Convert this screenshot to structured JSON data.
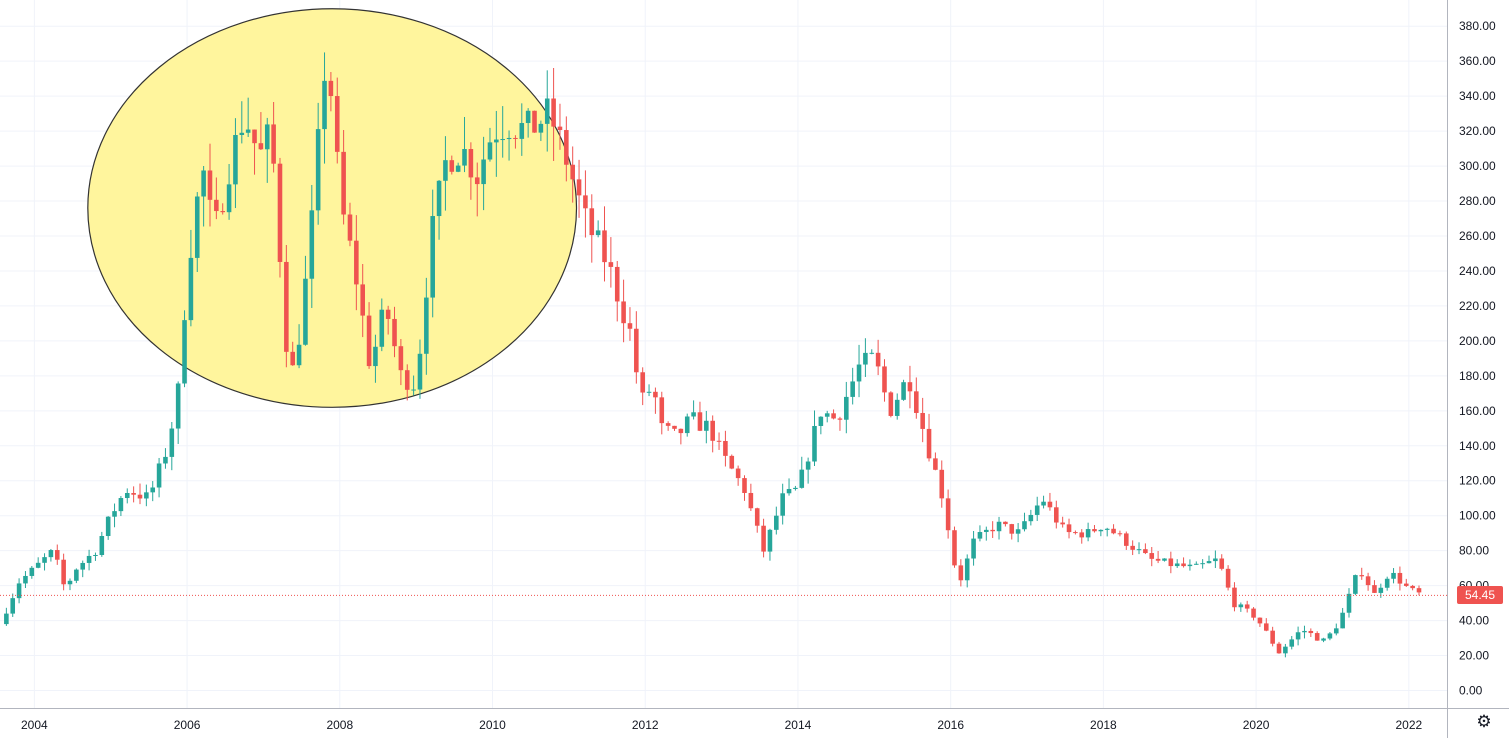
{
  "chart_data": {
    "type": "candlestick",
    "x_range": [
      2003.55,
      2022.5
    ],
    "ylim": [
      -10,
      395
    ],
    "grid": true,
    "x_ticks": [
      "2004",
      "2006",
      "2008",
      "2010",
      "2012",
      "2014",
      "2016",
      "2018",
      "2020",
      "2022"
    ],
    "y_ticks": [
      "0.00",
      "20.00",
      "40.00",
      "60.00",
      "80.00",
      "100.00",
      "120.00",
      "140.00",
      "160.00",
      "180.00",
      "200.00",
      "220.00",
      "240.00",
      "260.00",
      "280.00",
      "300.00",
      "320.00",
      "340.00",
      "360.00",
      "380.00"
    ],
    "last_price": 54.45,
    "last_price_label": "54.45",
    "highlight_ellipse": {
      "shape": "ellipse",
      "x_center": 2007.9,
      "y_center": 276,
      "x_radius": 3.2,
      "y_radius": 114,
      "fill": "#fff59d",
      "stroke": "#333333"
    },
    "colors": {
      "up": "#26a69a",
      "down": "#ef5350",
      "grid": "#f0f3fa",
      "text": "#131722",
      "last_price_line": "#ef5350"
    },
    "anchors": [
      [
        2003.55,
        38
      ],
      [
        2003.8,
        62
      ],
      [
        2004.0,
        70
      ],
      [
        2004.25,
        80
      ],
      [
        2004.4,
        58
      ],
      [
        2004.55,
        70
      ],
      [
        2004.8,
        80
      ],
      [
        2005.0,
        100
      ],
      [
        2005.2,
        115
      ],
      [
        2005.5,
        110
      ],
      [
        2005.75,
        140
      ],
      [
        2005.9,
        175
      ],
      [
        2006.0,
        240
      ],
      [
        2006.2,
        300
      ],
      [
        2006.35,
        260
      ],
      [
        2006.55,
        300
      ],
      [
        2006.75,
        330
      ],
      [
        2006.95,
        305
      ],
      [
        2007.1,
        320
      ],
      [
        2007.3,
        200
      ],
      [
        2007.4,
        180
      ],
      [
        2007.6,
        250
      ],
      [
        2007.8,
        355
      ],
      [
        2007.9,
        340
      ],
      [
        2008.0,
        280
      ],
      [
        2008.2,
        240
      ],
      [
        2008.4,
        185
      ],
      [
        2008.6,
        220
      ],
      [
        2008.8,
        180
      ],
      [
        2009.0,
        175
      ],
      [
        2009.2,
        260
      ],
      [
        2009.4,
        305
      ],
      [
        2009.6,
        310
      ],
      [
        2009.8,
        295
      ],
      [
        2010.0,
        320
      ],
      [
        2010.2,
        325
      ],
      [
        2010.45,
        320
      ],
      [
        2010.75,
        330
      ],
      [
        2011.0,
        300
      ],
      [
        2011.2,
        270
      ],
      [
        2011.5,
        245
      ],
      [
        2011.8,
        205
      ],
      [
        2011.95,
        165
      ],
      [
        2012.1,
        175
      ],
      [
        2012.2,
        150
      ],
      [
        2012.4,
        145
      ],
      [
        2012.6,
        155
      ],
      [
        2012.85,
        150
      ],
      [
        2013.0,
        135
      ],
      [
        2013.3,
        115
      ],
      [
        2013.55,
        80
      ],
      [
        2013.8,
        110
      ],
      [
        2014.0,
        115
      ],
      [
        2014.3,
        160
      ],
      [
        2014.5,
        155
      ],
      [
        2014.8,
        185
      ],
      [
        2015.0,
        190
      ],
      [
        2015.2,
        160
      ],
      [
        2015.45,
        180
      ],
      [
        2015.7,
        140
      ],
      [
        2015.9,
        110
      ],
      [
        2016.1,
        60
      ],
      [
        2016.3,
        85
      ],
      [
        2016.6,
        95
      ],
      [
        2016.9,
        90
      ],
      [
        2017.2,
        110
      ],
      [
        2017.5,
        90
      ],
      [
        2017.8,
        90
      ],
      [
        2018.0,
        95
      ],
      [
        2018.3,
        85
      ],
      [
        2018.6,
        75
      ],
      [
        2018.9,
        72
      ],
      [
        2019.2,
        70
      ],
      [
        2019.5,
        75
      ],
      [
        2019.7,
        50
      ],
      [
        2020.0,
        42
      ],
      [
        2020.3,
        22
      ],
      [
        2020.6,
        35
      ],
      [
        2020.9,
        28
      ],
      [
        2021.1,
        40
      ],
      [
        2021.35,
        70
      ],
      [
        2021.55,
        55
      ],
      [
        2021.75,
        68
      ],
      [
        2022.0,
        58
      ],
      [
        2022.15,
        55
      ]
    ]
  }
}
